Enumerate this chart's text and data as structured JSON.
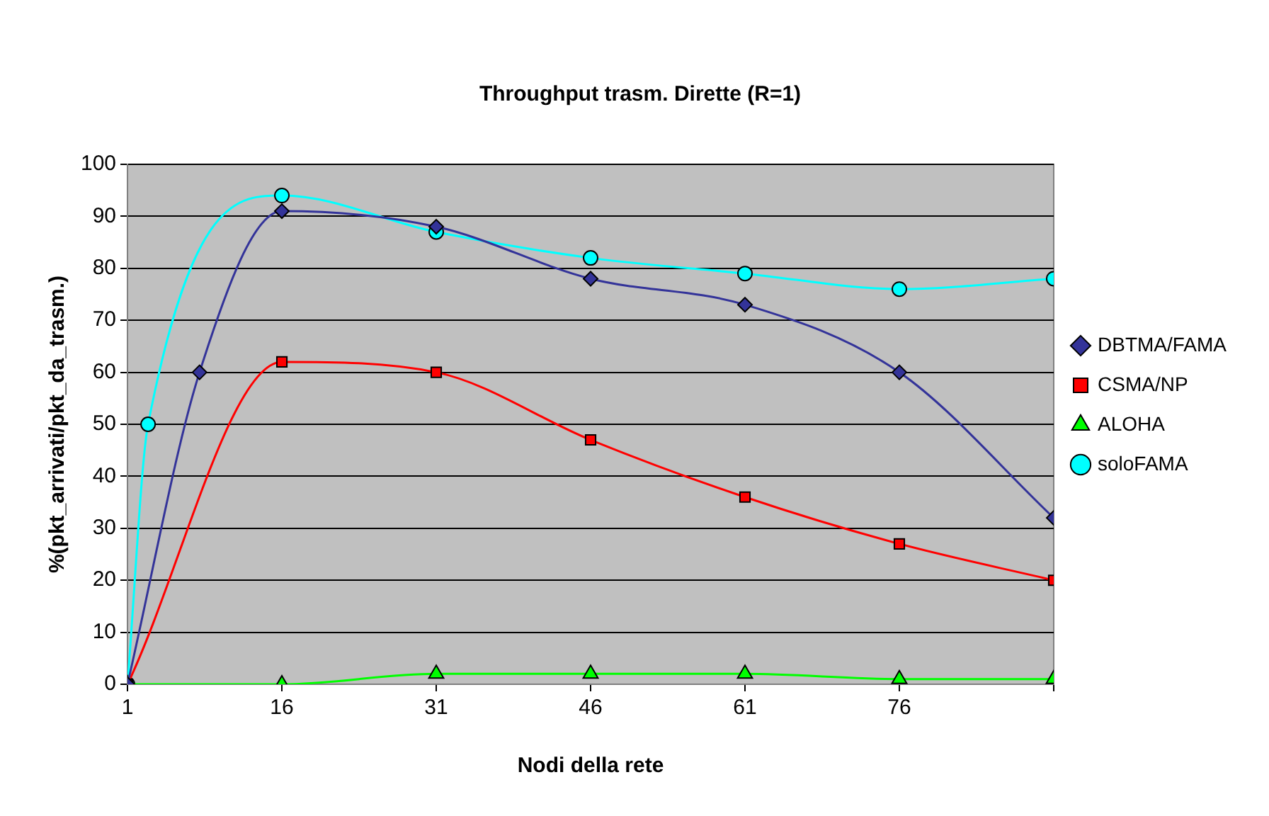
{
  "chart_data": {
    "type": "line",
    "title": "Throughput trasm. Dirette (R=1)",
    "xlabel": "Nodi della rete",
    "ylabel": "%(pkt_arrivati/pkt_da_trasm.)",
    "xlim": [
      1,
      91
    ],
    "xticks": [
      1,
      16,
      31,
      46,
      61,
      76,
      {
        "value": 91,
        "label": null
      }
    ],
    "ylim": [
      0,
      100
    ],
    "yticks": [
      0,
      10,
      20,
      30,
      40,
      50,
      60,
      70,
      80,
      90,
      100
    ],
    "grid": "y",
    "legend": "right",
    "series": [
      {
        "name": "DBTMA/FAMA",
        "color": "#333399",
        "marker": "diamond",
        "x": [
          1,
          8,
          16,
          31,
          46,
          61,
          76,
          91
        ],
        "values": [
          0,
          60,
          91,
          88,
          78,
          73,
          60,
          32
        ]
      },
      {
        "name": "CSMA/NP",
        "color": "#ff0000",
        "marker": "square",
        "x": [
          1,
          16,
          31,
          46,
          61,
          76,
          91
        ],
        "values": [
          0,
          62,
          60,
          47,
          36,
          27,
          20
        ]
      },
      {
        "name": "ALOHA",
        "color": "#00ff00",
        "marker": "triangle",
        "x": [
          1,
          16,
          31,
          46,
          61,
          76,
          91
        ],
        "values": [
          0,
          0,
          2,
          2,
          2,
          1,
          1
        ]
      },
      {
        "name": "soloFAMA",
        "color": "#00ffff",
        "marker": "circle",
        "x": [
          1,
          3,
          16,
          31,
          46,
          61,
          76,
          91
        ],
        "values": [
          0,
          50,
          94,
          87,
          82,
          79,
          76,
          78
        ]
      }
    ]
  }
}
